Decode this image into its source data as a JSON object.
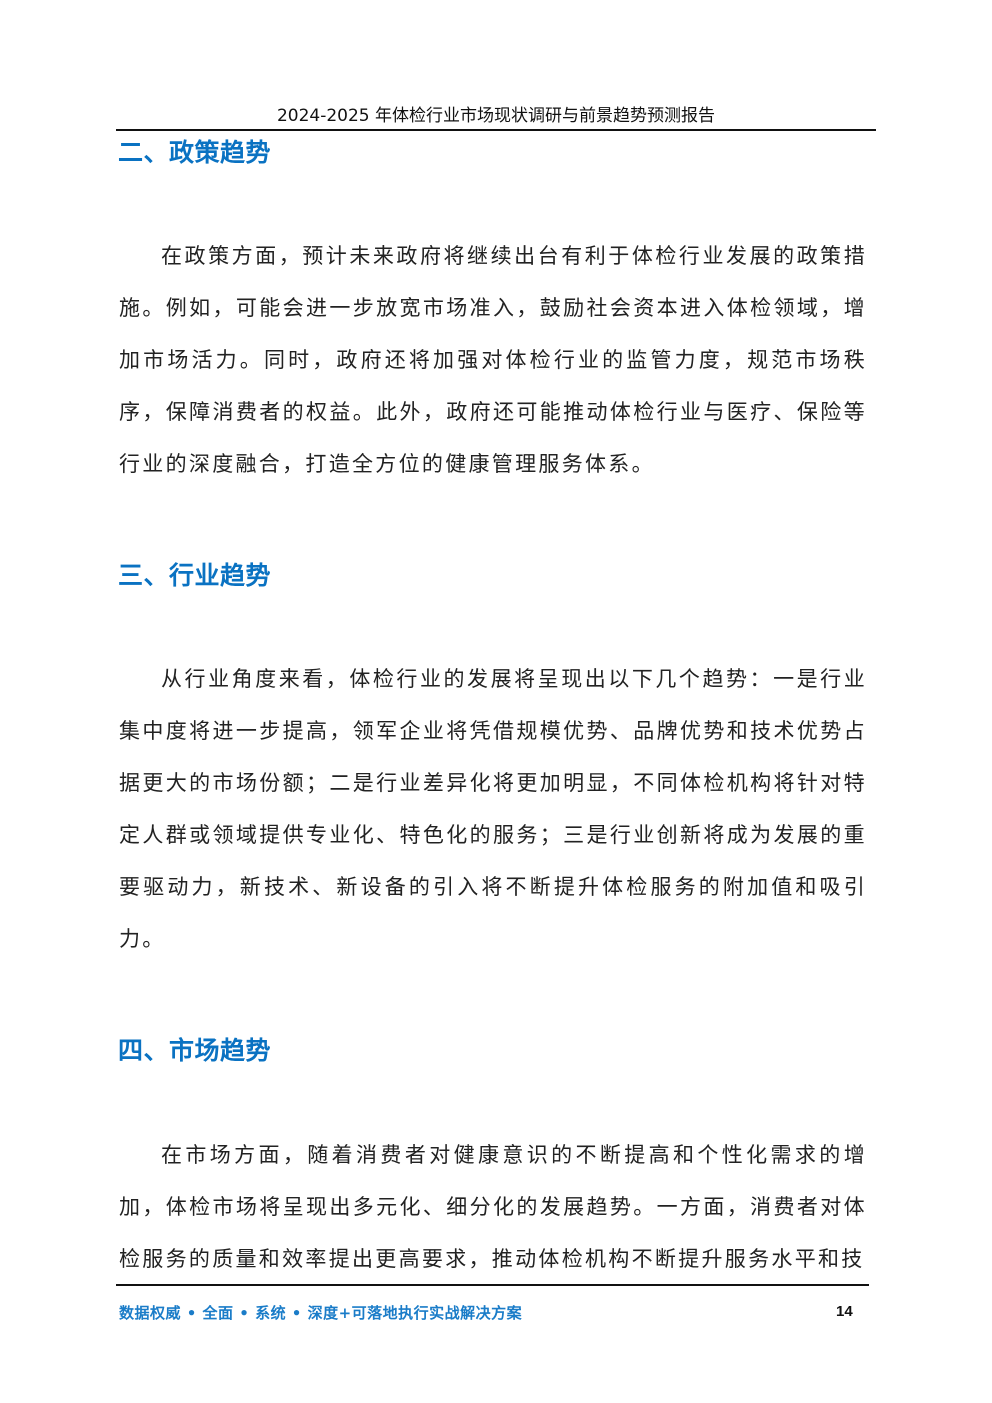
{
  "header": {
    "title": "2024-2025 年体检行业市场现状调研与前景趋势预测报告"
  },
  "sections": [
    {
      "heading": "二、政策趋势",
      "paragraph": "在政策方面，预计未来政府将继续出台有利于体检行业发展的政策措施。例如，可能会进一步放宽市场准入，鼓励社会资本进入体检领域，增加市场活力。同时，政府还将加强对体检行业的监管力度，规范市场秩序，保障消费者的权益。此外，政府还可能推动体检行业与医疗、保险等行业的深度融合，打造全方位的健康管理服务体系。"
    },
    {
      "heading": "三、行业趋势",
      "paragraph": "从行业角度来看，体检行业的发展将呈现出以下几个趋势：一是行业集中度将进一步提高，领军企业将凭借规模优势、品牌优势和技术优势占据更大的市场份额；二是行业差异化将更加明显，不同体检机构将针对特定人群或领域提供专业化、特色化的服务；三是行业创新将成为发展的重要驱动力，新技术、新设备的引入将不断提升体检服务的附加值和吸引力。"
    },
    {
      "heading": "四、市场趋势",
      "paragraph": "在市场方面，随着消费者对健康意识的不断提高和个性化需求的增加，体检市场将呈现出多元化、细分化的发展趋势。一方面，消费者对体检服务的质量和效率提出更高要求，推动体检机构不断提升服务水平和技"
    }
  ],
  "footer": {
    "slogan": "数据权威 • 全面 • 系统 • 深度+可落地执行实战解决方案",
    "page_number": "14"
  },
  "colors": {
    "heading": "#0a72c2",
    "footer_slogan": "#1a7cc8"
  }
}
